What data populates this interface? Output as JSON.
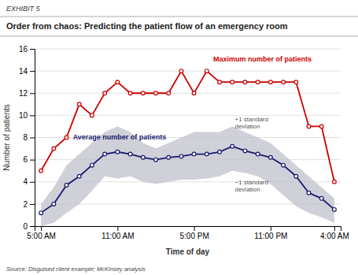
{
  "chart_data": {
    "type": "line",
    "subtitle": "EXHIBIT 5",
    "title": "Order from chaos: Predicting the patient flow of an emergency room",
    "xlabel": "Time of day",
    "ylabel": "Number of patients",
    "source": "Source: Disguised client example; McKinsey analysis",
    "x": [
      0,
      1,
      2,
      3,
      4,
      5,
      6,
      7,
      8,
      9,
      10,
      11,
      12,
      13,
      14,
      15,
      16,
      17,
      18,
      19,
      20,
      21,
      22,
      23
    ],
    "xlim": [
      -0.5,
      23.5
    ],
    "xticks": [
      {
        "value": 0,
        "label": "5:00 AM"
      },
      {
        "value": 6,
        "label": "11:00 AM"
      },
      {
        "value": 12,
        "label": "5:00 PM"
      },
      {
        "value": 18,
        "label": "11:00 PM"
      },
      {
        "value": 23,
        "label": "4:00 AM"
      }
    ],
    "ylim": [
      0,
      16
    ],
    "yticks": [
      0,
      2,
      4,
      6,
      8,
      10,
      12,
      14,
      16
    ],
    "grid": true,
    "series": [
      {
        "type": "band",
        "color": "#C0C0CC",
        "lower": [
          0.0,
          0.3,
          1.2,
          2.0,
          3.2,
          4.5,
          4.3,
          4.5,
          4.0,
          3.8,
          4.0,
          4.2,
          4.2,
          4.3,
          4.5,
          5.0,
          4.8,
          4.5,
          3.8,
          2.8,
          1.8,
          1.2,
          0.8,
          0.3
        ],
        "upper": [
          2.0,
          3.5,
          5.5,
          6.5,
          7.5,
          8.5,
          9.0,
          8.5,
          7.5,
          7.0,
          7.5,
          8.0,
          8.5,
          8.5,
          8.5,
          9.0,
          8.5,
          8.0,
          7.5,
          6.5,
          5.5,
          4.5,
          3.5,
          2.5
        ]
      },
      {
        "color": "#1a1a6e",
        "marker": "circle",
        "values": [
          1.2,
          2.0,
          3.7,
          4.5,
          5.5,
          6.5,
          6.7,
          6.5,
          6.2,
          6.0,
          6.2,
          6.3,
          6.5,
          6.5,
          6.7,
          7.2,
          6.8,
          6.5,
          6.2,
          5.5,
          4.5,
          3.0,
          2.5,
          1.5
        ]
      },
      {
        "color": "#CC0000",
        "marker": "circle",
        "values": [
          5.0,
          7.0,
          8.0,
          11.0,
          10.0,
          12.0,
          13.0,
          12.0,
          12.0,
          12.0,
          12.0,
          14.0,
          12.0,
          14.0,
          13.0,
          13.0,
          13.0,
          13.0,
          13.0,
          13.0,
          13.0,
          9.0,
          9.0,
          4.0
        ]
      }
    ],
    "annotations": [
      {
        "text": "Maximum number of patients",
        "x": 13.5,
        "y": 15.0,
        "color": "#CC0000"
      },
      {
        "text": "Average number of patients",
        "x": 2.5,
        "y": 8.0,
        "color": "#1a1a6e"
      },
      {
        "text": "+1 standard\ndeviation",
        "x": 15.2,
        "y": 9.3
      },
      {
        "text": "−1 standard\ndeviation",
        "x": 15.2,
        "y": 3.6
      }
    ]
  }
}
